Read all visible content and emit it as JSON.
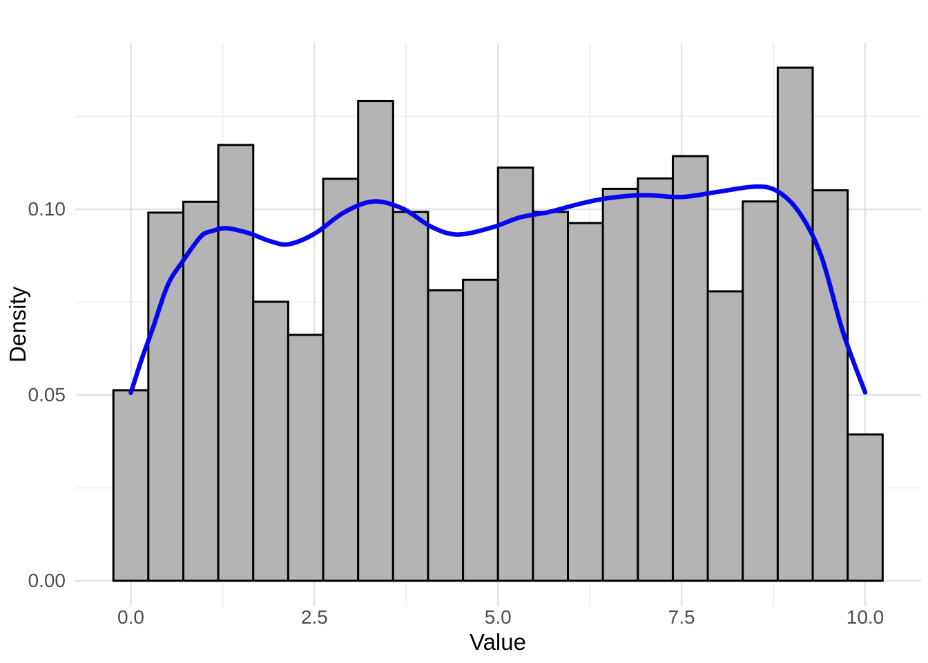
{
  "figure": {
    "kind": "histogram with density overlay",
    "background_color": "#ffffff"
  },
  "axes": {
    "x_title": "Value",
    "y_title": "Density",
    "x_tick_labels": [
      "0.0",
      "2.5",
      "5.0",
      "7.5",
      "10.0"
    ],
    "y_tick_labels": [
      "0.00",
      "0.05",
      "0.10"
    ],
    "tick_text_color": "#4d4d4d",
    "title_text_color": "#000000"
  },
  "style": {
    "bar_fill": "#b4b4b4",
    "bar_border": "#000000",
    "curve_color": "#0505ee",
    "major_grid_color": "#e4e4e4",
    "minor_grid_color": "#ececec"
  },
  "chart_data": {
    "type": "bar",
    "subtype": "histogram+density",
    "title": "",
    "xlabel": "Value",
    "ylabel": "Density",
    "xlim": [
      -0.762,
      10.762
    ],
    "ylim": [
      -0.0069,
      0.1449
    ],
    "grid": "on",
    "legend": "none",
    "x_ticks": [
      0.0,
      2.5,
      5.0,
      7.5,
      10.0
    ],
    "x_minor_ticks": [
      1.25,
      3.75,
      6.25,
      8.75
    ],
    "y_ticks": [
      0.0,
      0.05,
      0.1
    ],
    "y_minor_ticks": [
      0.025,
      0.075,
      0.125
    ],
    "binwidth": 0.47619,
    "bin_centers": [
      0.0,
      0.4762,
      0.9524,
      1.4286,
      1.9048,
      2.381,
      2.8571,
      3.3333,
      3.8095,
      4.2857,
      4.7619,
      5.2381,
      5.7143,
      6.1905,
      6.6667,
      7.1429,
      7.619,
      8.0952,
      8.5714,
      9.0476,
      9.5238,
      10.0
    ],
    "bin_densities": [
      0.0513,
      0.0991,
      0.102,
      0.1173,
      0.0751,
      0.0662,
      0.1082,
      0.1291,
      0.0993,
      0.0782,
      0.081,
      0.1112,
      0.0993,
      0.0963,
      0.1055,
      0.1083,
      0.1143,
      0.0779,
      0.1021,
      0.1381,
      0.1051,
      0.0394
    ],
    "density_curve": [
      [
        0.0,
        0.0506
      ],
      [
        0.15,
        0.0598
      ],
      [
        0.3,
        0.068
      ],
      [
        0.5,
        0.0795
      ],
      [
        0.7,
        0.0858
      ],
      [
        0.95,
        0.0926
      ],
      [
        1.1,
        0.0941
      ],
      [
        1.3,
        0.0949
      ],
      [
        1.6,
        0.0936
      ],
      [
        1.9,
        0.0914
      ],
      [
        2.15,
        0.0906
      ],
      [
        2.5,
        0.0934
      ],
      [
        2.9,
        0.0991
      ],
      [
        3.3,
        0.1021
      ],
      [
        3.7,
        0.1002
      ],
      [
        4.1,
        0.0952
      ],
      [
        4.45,
        0.0932
      ],
      [
        4.9,
        0.095
      ],
      [
        5.3,
        0.0978
      ],
      [
        5.7,
        0.0993
      ],
      [
        6.1,
        0.1014
      ],
      [
        6.5,
        0.103
      ],
      [
        7.0,
        0.1038
      ],
      [
        7.5,
        0.1033
      ],
      [
        8.0,
        0.1047
      ],
      [
        8.5,
        0.1061
      ],
      [
        8.8,
        0.1049
      ],
      [
        9.1,
        0.0992
      ],
      [
        9.4,
        0.0875
      ],
      [
        9.7,
        0.0668
      ],
      [
        10.0,
        0.0507
      ]
    ]
  }
}
